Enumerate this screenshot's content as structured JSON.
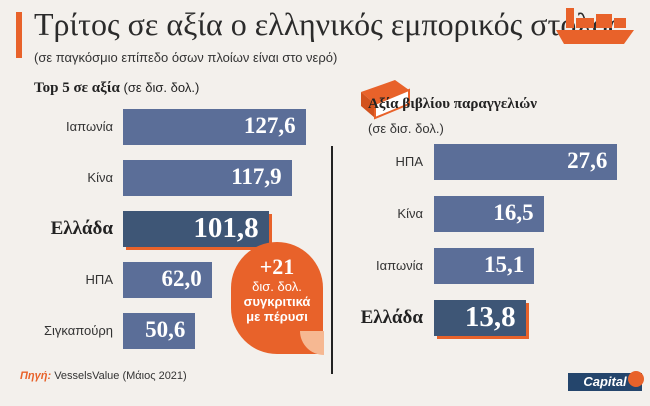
{
  "header": {
    "title": "Τρίτος σε αξία ο ελληνικός εμπορικός στόλος",
    "subtitle": "(σε παγκόσμιο επίπεδο όσων πλοίων είναι στο νερό)"
  },
  "colors": {
    "accent": "#e8622a",
    "bar": "#5b6e98",
    "bar_highlight": "#3e5676",
    "background": "#f3f0ec"
  },
  "left": {
    "heading": "Top 5 σε αξία",
    "unit": "(σε δισ. δολ.)"
  },
  "right": {
    "heading": "Αξία βιβλίου παραγγελιών",
    "unit": "(σε δισ. δολ.)"
  },
  "callout": {
    "line1": "+21",
    "line2": "δισ. δολ.",
    "line3": "συγκριτικά",
    "line4": "με πέρυσι"
  },
  "footer": {
    "source_label": "Πηγή:",
    "source_text": "VesselsValue (Μάιος 2021)",
    "brand": "Capital"
  },
  "icons": {
    "ship": "ship-icon",
    "book": "book-icon"
  },
  "chart_data": [
    {
      "type": "bar",
      "orientation": "horizontal",
      "title": "Top 5 σε αξία",
      "unit": "(σε δισ. δολ.)",
      "categories": [
        "Ιαπωνία",
        "Κίνα",
        "Ελλάδα",
        "ΗΠΑ",
        "Σιγκαπούρη"
      ],
      "values": [
        127.6,
        117.9,
        101.8,
        62.0,
        50.6
      ],
      "labels": [
        "127,6",
        "117,9",
        "101,8",
        "62,0",
        "50,6"
      ],
      "highlight": "Ελλάδα",
      "xlim": [
        0,
        130
      ]
    },
    {
      "type": "bar",
      "orientation": "horizontal",
      "title": "Αξία βιβλίου παραγγελιών",
      "unit": "(σε δισ. δολ.)",
      "categories": [
        "ΗΠΑ",
        "Κίνα",
        "Ιαπωνία",
        "Ελλάδα"
      ],
      "values": [
        27.6,
        16.5,
        15.1,
        13.8
      ],
      "labels": [
        "27,6",
        "16,5",
        "15,1",
        "13,8"
      ],
      "highlight": "Ελλάδα",
      "xlim": [
        0,
        28
      ]
    }
  ]
}
